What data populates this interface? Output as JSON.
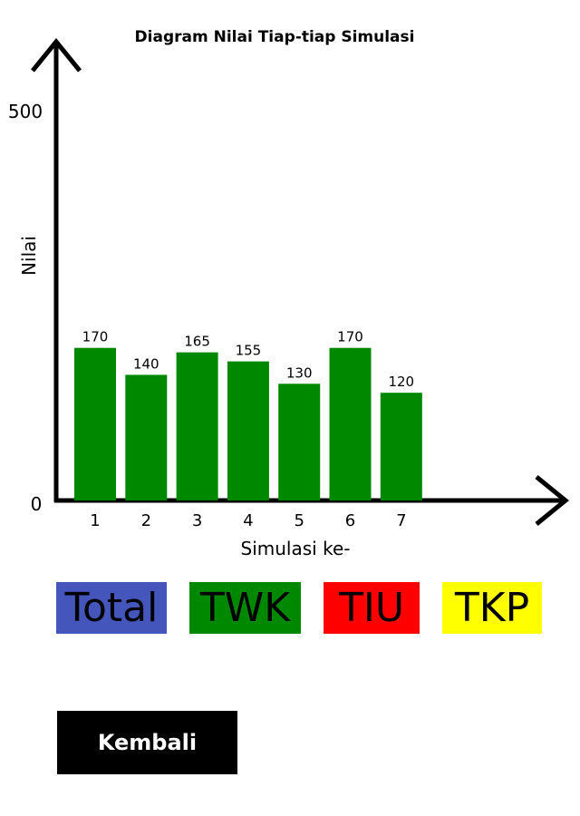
{
  "chart_data": {
    "type": "bar",
    "title": "Diagram Nilai Tiap-tiap Simulasi",
    "xlabel": "Simulasi ke-",
    "ylabel": "Nilai",
    "categories": [
      "1",
      "2",
      "3",
      "4",
      "5",
      "6",
      "7"
    ],
    "values": [
      170,
      140,
      165,
      155,
      130,
      170,
      120
    ],
    "ylim": [
      0,
      500
    ],
    "yticks": [
      "0",
      "500"
    ],
    "bar_color": "#008800",
    "grid": false,
    "legend": "none"
  },
  "filters": [
    {
      "label": "Total",
      "color": "#4455bb"
    },
    {
      "label": "TWK",
      "color": "#008800"
    },
    {
      "label": "TIU",
      "color": "#ff0000"
    },
    {
      "label": "TKP",
      "color": "#ffff00"
    }
  ],
  "back_button": {
    "label": "Kembali",
    "color": "#000000"
  }
}
